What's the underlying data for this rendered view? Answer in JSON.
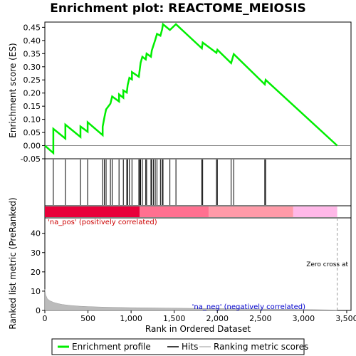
{
  "chart_data": {
    "type": "line",
    "title": "Enrichment plot: REACTOME_MEIOSIS",
    "xlabel": "Rank in Ordered Dataset",
    "xlim": [
      0,
      3550
    ],
    "x_ticks": [
      0,
      500,
      1000,
      1500,
      2000,
      2500,
      3000,
      3500
    ],
    "es_panel": {
      "ylabel": "Enrichment score (ES)",
      "ylim": [
        -0.05,
        0.47
      ],
      "y_ticks": [
        -0.05,
        0.0,
        0.05,
        0.1,
        0.15,
        0.2,
        0.25,
        0.3,
        0.35,
        0.4,
        0.45
      ],
      "y_tick_labels": [
        "-0.05",
        "0.00",
        "0.05",
        "0.10",
        "0.15",
        "0.20",
        "0.25",
        "0.30",
        "0.35",
        "0.40",
        "0.45"
      ],
      "color": "#00ee00",
      "series": {
        "name": "Enrichment profile",
        "points": [
          [
            0,
            0.0
          ],
          [
            98,
            -0.028
          ],
          [
            98,
            0.064
          ],
          [
            238,
            0.027
          ],
          [
            238,
            0.08
          ],
          [
            413,
            0.033
          ],
          [
            413,
            0.073
          ],
          [
            496,
            0.053
          ],
          [
            496,
            0.089
          ],
          [
            670,
            0.04
          ],
          [
            670,
            0.072
          ],
          [
            690,
            0.107
          ],
          [
            710,
            0.138
          ],
          [
            760,
            0.16
          ],
          [
            780,
            0.187
          ],
          [
            860,
            0.168
          ],
          [
            860,
            0.195
          ],
          [
            910,
            0.182
          ],
          [
            910,
            0.21
          ],
          [
            950,
            0.202
          ],
          [
            960,
            0.23
          ],
          [
            980,
            0.258
          ],
          [
            1010,
            0.252
          ],
          [
            1010,
            0.28
          ],
          [
            1090,
            0.262
          ],
          [
            1100,
            0.288
          ],
          [
            1110,
            0.315
          ],
          [
            1130,
            0.338
          ],
          [
            1170,
            0.328
          ],
          [
            1180,
            0.35
          ],
          [
            1230,
            0.338
          ],
          [
            1240,
            0.362
          ],
          [
            1260,
            0.382
          ],
          [
            1280,
            0.402
          ],
          [
            1300,
            0.425
          ],
          [
            1340,
            0.418
          ],
          [
            1360,
            0.442
          ],
          [
            1370,
            0.462
          ],
          [
            1450,
            0.44
          ],
          [
            1520,
            0.462
          ],
          [
            1820,
            0.37
          ],
          [
            1830,
            0.392
          ],
          [
            1990,
            0.353
          ],
          [
            2000,
            0.365
          ],
          [
            2160,
            0.314
          ],
          [
            2190,
            0.348
          ],
          [
            2550,
            0.233
          ],
          [
            2560,
            0.25
          ],
          [
            3390,
            0.0
          ]
        ]
      }
    },
    "hits": {
      "name": "Hits",
      "ranks": [
        98,
        238,
        413,
        496,
        670,
        690,
        710,
        760,
        780,
        860,
        910,
        950,
        960,
        980,
        1010,
        1090,
        1100,
        1110,
        1130,
        1170,
        1180,
        1230,
        1240,
        1260,
        1280,
        1300,
        1340,
        1360,
        1370,
        1450,
        1520,
        1820,
        1830,
        1990,
        2000,
        2160,
        2190,
        2550,
        2560
      ]
    },
    "ranked_metric": {
      "name": "Ranking metric scores",
      "ylabel": "Ranked list metric (PreRanked)",
      "ylim": [
        0,
        48
      ],
      "y_ticks": [
        0,
        10,
        20,
        30,
        40
      ],
      "points": [
        [
          0,
          11.0
        ],
        [
          10,
          8.0
        ],
        [
          30,
          6.0
        ],
        [
          60,
          5.0
        ],
        [
          100,
          4.2
        ],
        [
          150,
          3.6
        ],
        [
          200,
          3.1
        ],
        [
          300,
          2.6
        ],
        [
          400,
          2.2
        ],
        [
          500,
          2.0
        ],
        [
          700,
          1.7
        ],
        [
          1000,
          1.45
        ],
        [
          1500,
          1.2
        ],
        [
          2000,
          0.95
        ],
        [
          2500,
          0.75
        ],
        [
          2900,
          0.55
        ],
        [
          3100,
          0.45
        ],
        [
          3300,
          0.3
        ],
        [
          3390,
          0.2
        ]
      ],
      "zero_cross": 3390,
      "zero_cross_label": "Zero cross at",
      "pos_label": "'na_pos' (positively correlated)",
      "neg_label": "'na_neg' (negatively correlated)",
      "pos_label_color": "#cc0000",
      "neg_label_color": "#0000cc"
    },
    "color_band": {
      "start": 0,
      "end": 3390,
      "colors": [
        "#e8003a",
        "#ff7090",
        "#ff9aa8",
        "#ffb8e8"
      ],
      "boundaries": [
        0,
        1100,
        1900,
        2880,
        3390
      ]
    },
    "legend": {
      "position": "bottom",
      "entries": [
        {
          "label": "Enrichment profile",
          "color": "#00ee00"
        },
        {
          "label": "Hits",
          "color": "#000000"
        },
        {
          "label": "Ranking metric scores",
          "color": "#bbbbbb"
        }
      ]
    }
  }
}
